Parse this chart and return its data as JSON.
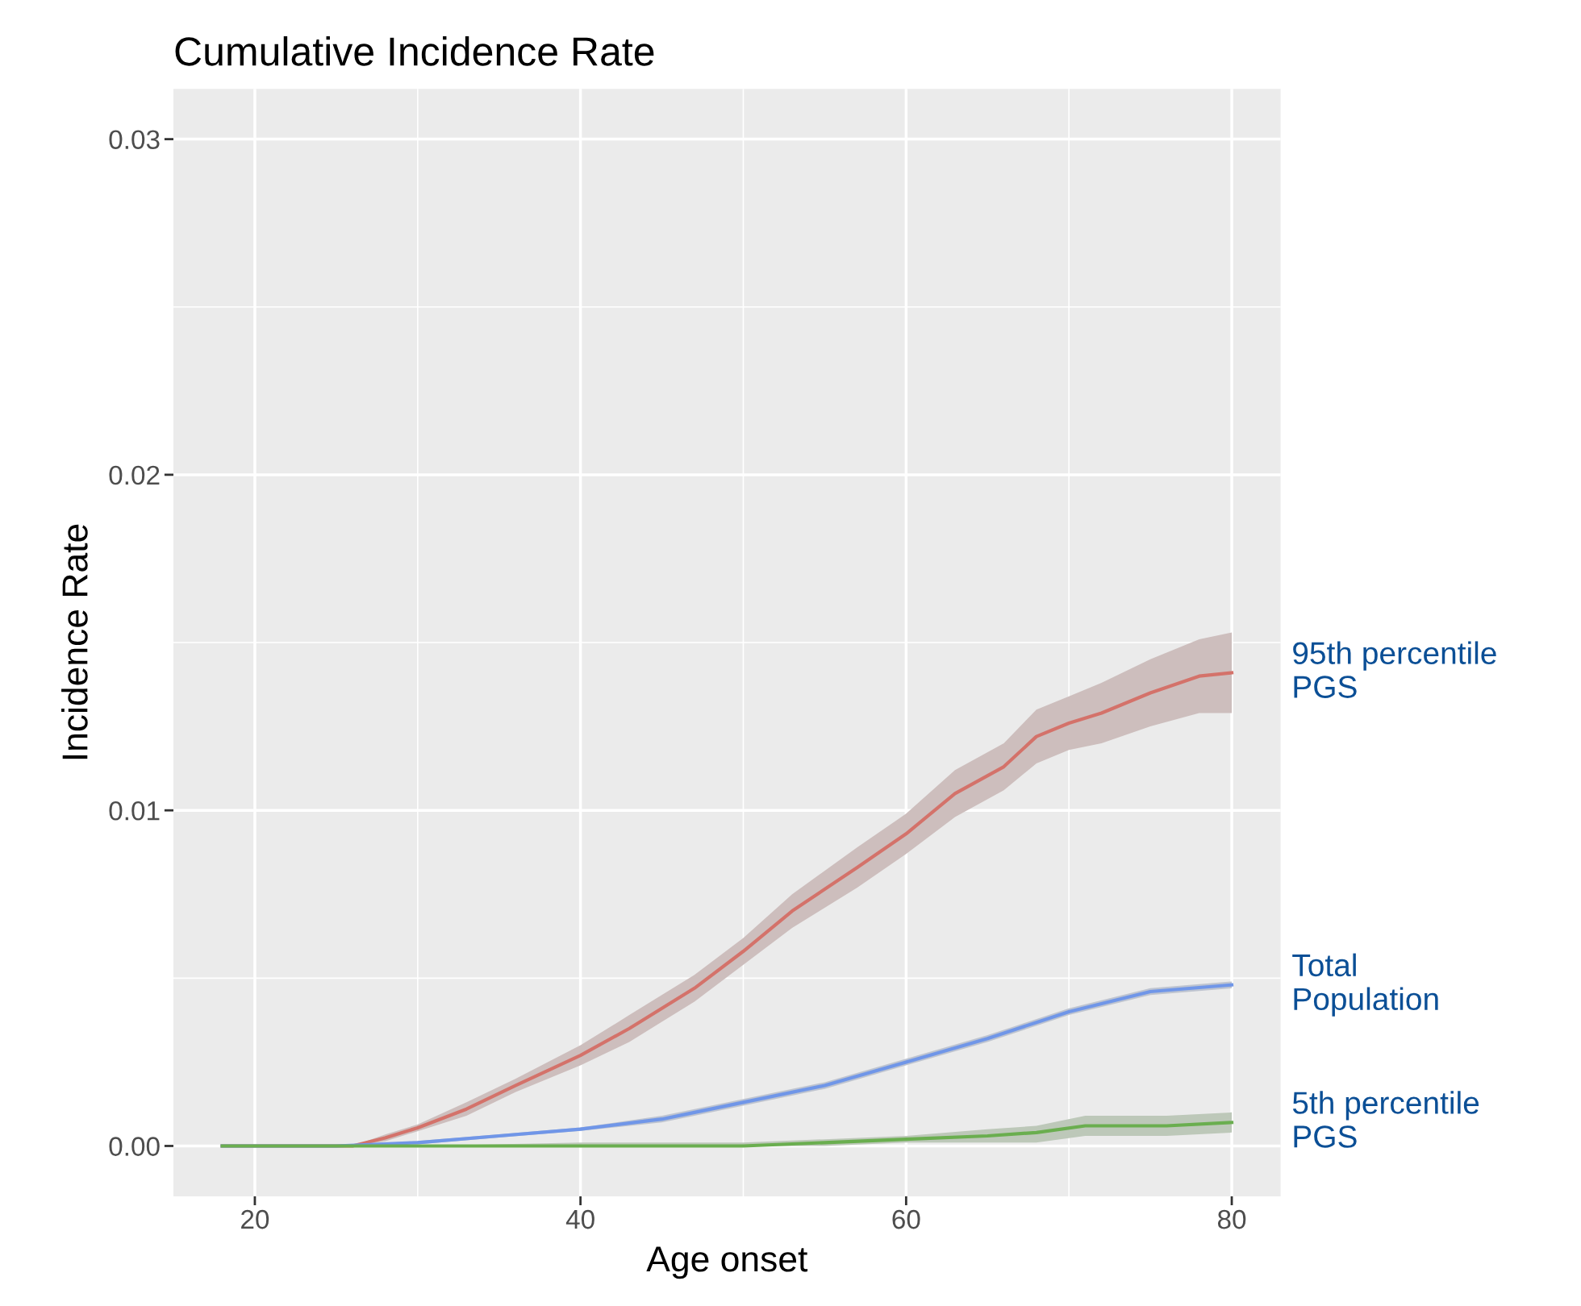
{
  "chart_data": {
    "type": "line",
    "title": "Cumulative Incidence Rate",
    "xlabel": "Age onset",
    "ylabel": "Incidence Rate",
    "xlim": [
      15,
      83
    ],
    "xticks": [
      20,
      40,
      60,
      80
    ],
    "ylim": [
      -0.0015,
      0.0315
    ],
    "yticks": [
      {
        "value": 0,
        "label": "0.00"
      },
      {
        "value": 0.01,
        "label": "0.01"
      },
      {
        "value": 0.02,
        "label": "0.02"
      },
      {
        "value": 0.03,
        "label": "0.03"
      }
    ],
    "grid": true,
    "legend": false,
    "line_style": "solid",
    "marker": "none",
    "series": [
      {
        "name": "95th percentile\nPGS",
        "color": "#d4726a",
        "x": [
          18,
          22,
          26,
          28,
          30,
          33,
          36,
          40,
          43,
          47,
          50,
          53,
          57,
          60,
          63,
          66,
          68,
          70,
          72,
          75,
          78,
          80
        ],
        "values": [
          0,
          0,
          0,
          0.00024,
          0.00054,
          0.0011,
          0.0018,
          0.0027,
          0.0035,
          0.0047,
          0.0058,
          0.007,
          0.0083,
          0.0093,
          0.0105,
          0.0113,
          0.0122,
          0.0126,
          0.0129,
          0.0135,
          0.014,
          0.0141
        ],
        "lower": [
          0,
          0,
          0,
          0.00014,
          0.00044,
          0.0009,
          0.0016,
          0.0024,
          0.0031,
          0.0043,
          0.0054,
          0.0065,
          0.0077,
          0.0087,
          0.0098,
          0.0106,
          0.0114,
          0.0118,
          0.012,
          0.0125,
          0.0129,
          0.0129
        ],
        "upper": [
          0,
          0,
          0,
          0.00034,
          0.00064,
          0.0013,
          0.002,
          0.003,
          0.0039,
          0.0051,
          0.0062,
          0.0075,
          0.0089,
          0.0099,
          0.0112,
          0.012,
          0.013,
          0.0134,
          0.0138,
          0.0145,
          0.0151,
          0.0153
        ]
      },
      {
        "name": "Total\nPopulation",
        "color": "#7096e8",
        "x": [
          18,
          25,
          30,
          35,
          40,
          45,
          47,
          50,
          55,
          60,
          65,
          70,
          75,
          80
        ],
        "values": [
          0,
          0,
          0.0001,
          0.0003,
          0.0005,
          0.0008,
          0.001,
          0.0013,
          0.0018,
          0.0025,
          0.0032,
          0.004,
          0.0046,
          0.0048
        ],
        "lower": [
          0,
          0,
          5e-05,
          0.00025,
          0.00045,
          0.0007,
          0.0009,
          0.0012,
          0.0017,
          0.0024,
          0.0031,
          0.0039,
          0.0045,
          0.0047
        ],
        "upper": [
          0,
          0,
          0.00015,
          0.00035,
          0.00055,
          0.0009,
          0.0011,
          0.0014,
          0.0019,
          0.0026,
          0.0033,
          0.0041,
          0.0047,
          0.0049
        ]
      },
      {
        "name": "5th percentile\nPGS",
        "color": "#6aae4f",
        "x": [
          18,
          30,
          40,
          50,
          55,
          60,
          65,
          68,
          71,
          76,
          80
        ],
        "values": [
          0,
          0,
          0,
          0,
          0.0001,
          0.0002,
          0.0003,
          0.0004,
          0.0006,
          0.0006,
          0.0007
        ],
        "lower": [
          0,
          0,
          0,
          0,
          0,
          0.0001,
          0.0001,
          0.0001,
          0.0003,
          0.0003,
          0.0004
        ],
        "upper": [
          0,
          0,
          0.0001,
          0.0001,
          0.0002,
          0.0003,
          0.0005,
          0.0006,
          0.0009,
          0.0009,
          0.001
        ]
      }
    ]
  }
}
